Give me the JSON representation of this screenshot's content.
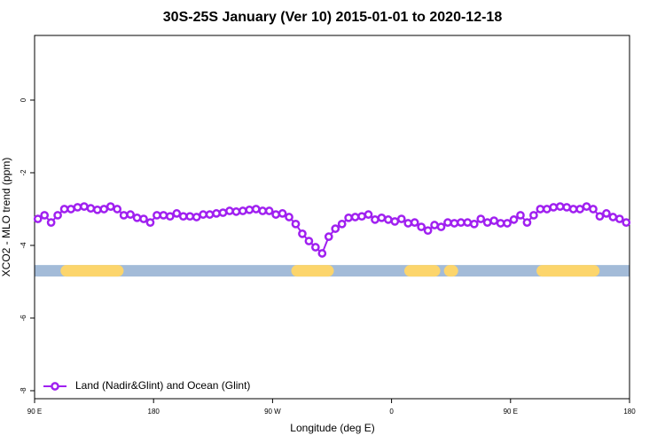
{
  "chart_data": {
    "type": "line",
    "title": "30S-25S January (Ver 10)   2015-01-01 to 2020-12-18",
    "xlabel": "Longitude (deg E)",
    "ylabel": "XCO2 - MLO trend (ppm)",
    "xlim": [
      90,
      540
    ],
    "xticks": [
      {
        "value": 90,
        "label": "90 E"
      },
      180,
      {
        "value": 270,
        "label": "90 W"
      },
      {
        "value": 360,
        "label": "0"
      },
      {
        "value": 450,
        "label": "90 E"
      },
      {
        "value": 540,
        "label": "180"
      }
    ],
    "ylim": [
      -8.22,
      1.78
    ],
    "yticks": [
      0,
      -2,
      -4,
      -6,
      -8
    ],
    "legend": "bottom-left",
    "series": [
      {
        "name": "Land (Nadir&Glint) and Ocean (Glint)",
        "color": "#a020f0",
        "x": [
          92.5,
          97.5,
          102.5,
          107.5,
          112.5,
          117.5,
          122.5,
          127.5,
          132.5,
          137.5,
          142.5,
          147.5,
          152.5,
          157.5,
          162.5,
          167.5,
          172.5,
          177.5,
          182.5,
          187.5,
          192.5,
          197.5,
          202.5,
          207.5,
          212.5,
          217.5,
          222.5,
          227.5,
          232.5,
          237.5,
          242.5,
          247.5,
          252.5,
          257.5,
          262.5,
          267.5,
          272.5,
          277.5,
          282.5,
          287.5,
          292.5,
          297.5,
          302.5,
          307.5,
          312.5,
          317.5,
          322.5,
          327.5,
          332.5,
          337.5,
          342.5,
          347.5,
          352.5,
          357.5,
          362.5,
          367.5,
          372.5,
          377.5,
          382.5,
          387.5,
          392.5,
          397.5,
          402.5,
          407.5,
          412.5,
          417.5,
          422.5,
          427.5,
          432.5,
          437.5,
          442.5,
          447.5,
          452.5,
          457.5,
          462.5,
          467.5,
          472.5,
          477.5,
          482.5,
          487.5,
          492.5,
          497.5,
          502.5,
          507.5,
          512.5,
          517.5,
          522.5,
          527.5,
          532.5,
          537.5
        ],
        "values": [
          -3.27,
          -3.17,
          -3.37,
          -3.17,
          -3.0,
          -3.0,
          -2.95,
          -2.93,
          -2.98,
          -3.02,
          -3.0,
          -2.93,
          -3.0,
          -3.17,
          -3.15,
          -3.24,
          -3.27,
          -3.37,
          -3.17,
          -3.17,
          -3.2,
          -3.12,
          -3.2,
          -3.2,
          -3.22,
          -3.15,
          -3.15,
          -3.12,
          -3.1,
          -3.05,
          -3.07,
          -3.05,
          -3.02,
          -3.0,
          -3.05,
          -3.05,
          -3.15,
          -3.12,
          -3.22,
          -3.41,
          -3.68,
          -3.88,
          -4.05,
          -4.22,
          -3.76,
          -3.54,
          -3.41,
          -3.24,
          -3.22,
          -3.2,
          -3.15,
          -3.29,
          -3.24,
          -3.29,
          -3.34,
          -3.27,
          -3.39,
          -3.37,
          -3.49,
          -3.59,
          -3.44,
          -3.49,
          -3.37,
          -3.39,
          -3.37,
          -3.37,
          -3.41,
          -3.27,
          -3.37,
          -3.32,
          -3.39,
          -3.39,
          -3.29,
          -3.17,
          -3.37,
          -3.17,
          -3.0,
          -3.0,
          -2.95,
          -2.93,
          -2.95,
          -3.0,
          -3.0,
          -2.93,
          -3.0,
          -3.2,
          -3.12,
          -3.22,
          -3.27,
          -3.37
        ]
      }
    ],
    "surface_band": {
      "y": -4.7,
      "ocean_color": "#a3bbd8",
      "land_color": "#fcd56c",
      "land_ranges": [
        [
          114,
          153
        ],
        [
          288.5,
          312
        ],
        [
          374,
          392.5
        ],
        [
          404,
          406
        ],
        [
          474,
          513
        ]
      ]
    }
  }
}
